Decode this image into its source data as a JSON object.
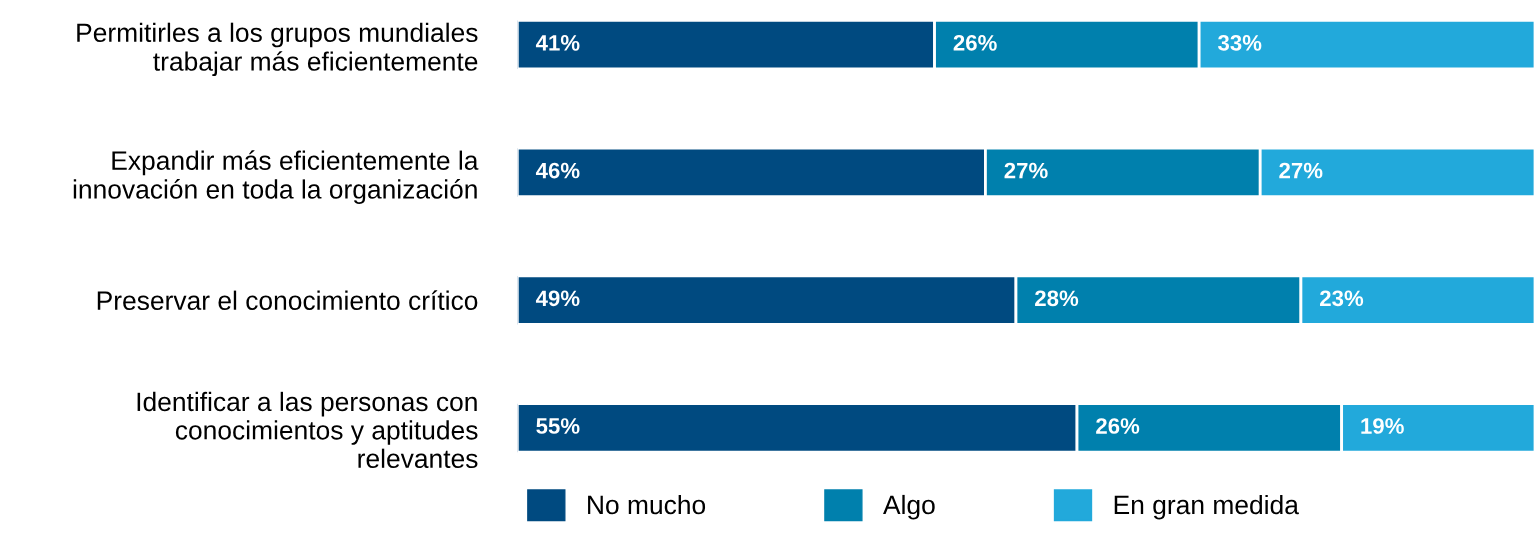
{
  "chart_data": {
    "type": "bar",
    "orientation": "horizontal",
    "stacked": true,
    "legend": "bottom",
    "grid": false,
    "tick_labels": "y",
    "categories": [
      "Permitirles a los grupos mundiales\ntrabajar más eficientemente",
      "Expandir más eficientemente la\ninnovación en toda la organización",
      "Preservar el conocimiento crítico",
      "Identificar a las personas con\nconocimientos y aptitudes\nrelevantes"
    ],
    "series": [
      {
        "name": "No mucho",
        "color": "#004a80",
        "values": [
          41,
          46,
          49,
          55
        ],
        "value_labels": [
          "41%",
          "46%",
          "49%",
          "55%"
        ]
      },
      {
        "name": "Algo",
        "color": "#0080ad",
        "values": [
          26,
          27,
          28,
          26
        ],
        "value_labels": [
          "26%",
          "27%",
          "28%",
          "26%"
        ]
      },
      {
        "name": "En gran medida",
        "color": "#22a9db",
        "values": [
          33,
          27,
          23,
          19
        ],
        "value_labels": [
          "33%",
          "27%",
          "23%",
          "19%"
        ]
      }
    ]
  }
}
